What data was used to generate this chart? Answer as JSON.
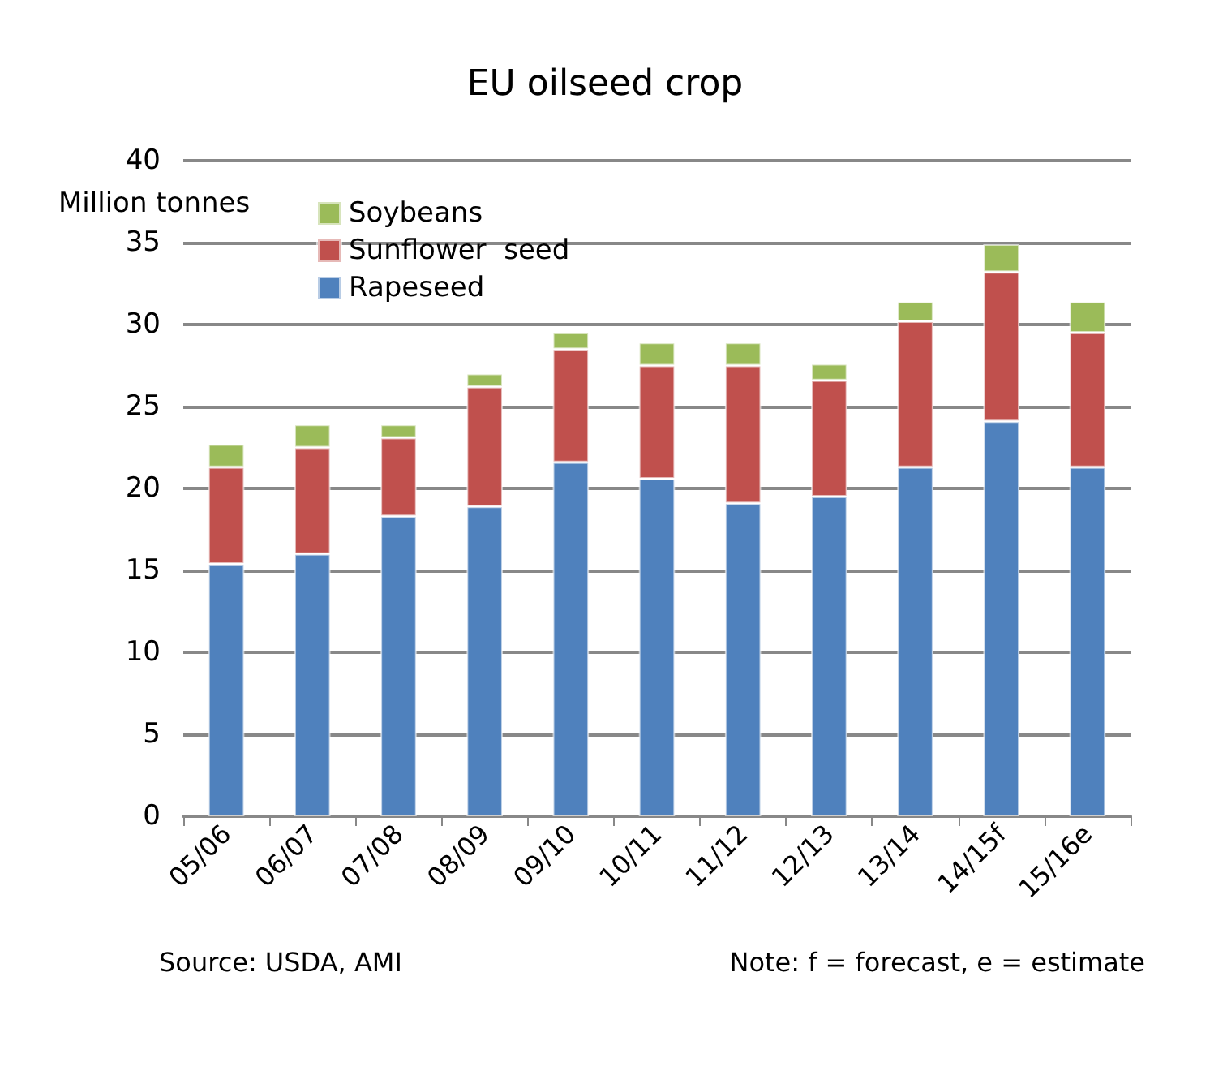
{
  "chart_data": {
    "type": "bar",
    "title": "EU oilseed crop",
    "ylabel": "Million tonnes",
    "categories": [
      "05/06",
      "06/07",
      "07/08",
      "08/09",
      "09/10",
      "10/11",
      "11/12",
      "12/13",
      "13/14",
      "14/15f",
      "15/16e"
    ],
    "series": [
      {
        "name": "Rapeseed",
        "color": "#4f81bd",
        "values": [
          15.4,
          16.0,
          18.3,
          18.9,
          21.6,
          20.6,
          19.1,
          19.5,
          21.3,
          24.1,
          21.3
        ]
      },
      {
        "name": "Sunflower  seed",
        "color": "#c0504d",
        "values": [
          5.9,
          6.5,
          4.8,
          7.3,
          6.9,
          6.9,
          8.4,
          7.1,
          8.9,
          9.1,
          8.2
        ]
      },
      {
        "name": "Soybeans",
        "color": "#9bbb59",
        "values": [
          1.4,
          1.4,
          0.8,
          0.8,
          1.0,
          1.4,
          1.4,
          1.0,
          1.2,
          1.7,
          1.9
        ]
      }
    ],
    "stacked": true,
    "ylim": [
      0,
      40
    ],
    "yticks": [
      0,
      5,
      10,
      15,
      20,
      25,
      30,
      35,
      40
    ],
    "grid": "y",
    "legend": "top left",
    "annotations": [
      "Source: USDA, AMI",
      "Note: f = forecast, e = estimate"
    ]
  }
}
